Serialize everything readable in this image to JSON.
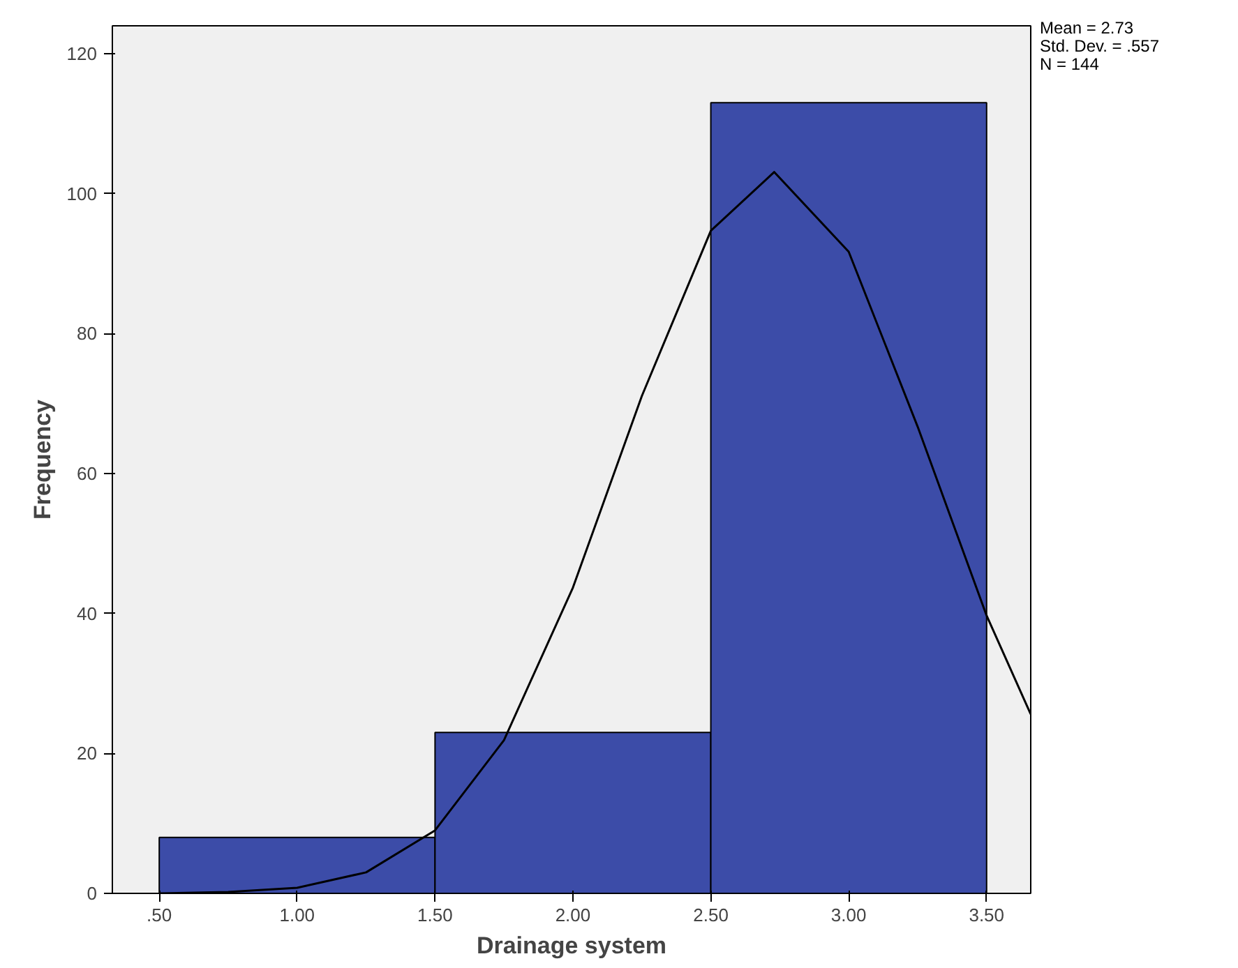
{
  "chart_data": {
    "type": "histogram",
    "xlabel": "Drainage system",
    "ylabel": "Frequency",
    "bins": [
      0.5,
      1.5,
      2.5,
      3.5
    ],
    "values": [
      8,
      23,
      113
    ],
    "color": "#3c4ca8",
    "series": [
      {
        "type": "line",
        "color": "#000000",
        "x": [
          0.5,
          0.75,
          1.0,
          1.25,
          1.5,
          1.75,
          2.0,
          2.25,
          2.5,
          2.73,
          3.0,
          3.25,
          3.5,
          3.66
        ],
        "values": [
          0,
          0.2,
          0.8,
          3.0,
          9.0,
          21.9,
          43.7,
          71.1,
          94.7,
          103.1,
          91.7,
          66.7,
          39.7,
          25.6
        ]
      }
    ],
    "xlim": [
      0.33,
      3.66
    ],
    "ylim": [
      0,
      124
    ],
    "xticks": [
      {
        "value": 0.5,
        "label": ".50"
      },
      {
        "value": 1.0,
        "label": "1.00"
      },
      {
        "value": 1.5,
        "label": "1.50"
      },
      {
        "value": 2.0,
        "label": "2.00"
      },
      {
        "value": 2.5,
        "label": "2.50"
      },
      {
        "value": 3.0,
        "label": "3.00"
      },
      {
        "value": 3.5,
        "label": "3.50"
      }
    ],
    "yticks": [
      0,
      20,
      40,
      60,
      80,
      100,
      120
    ],
    "annotations": [
      "Mean = 2.73",
      "Std. Dev. = .557",
      "N = 144"
    ],
    "grid": false
  }
}
